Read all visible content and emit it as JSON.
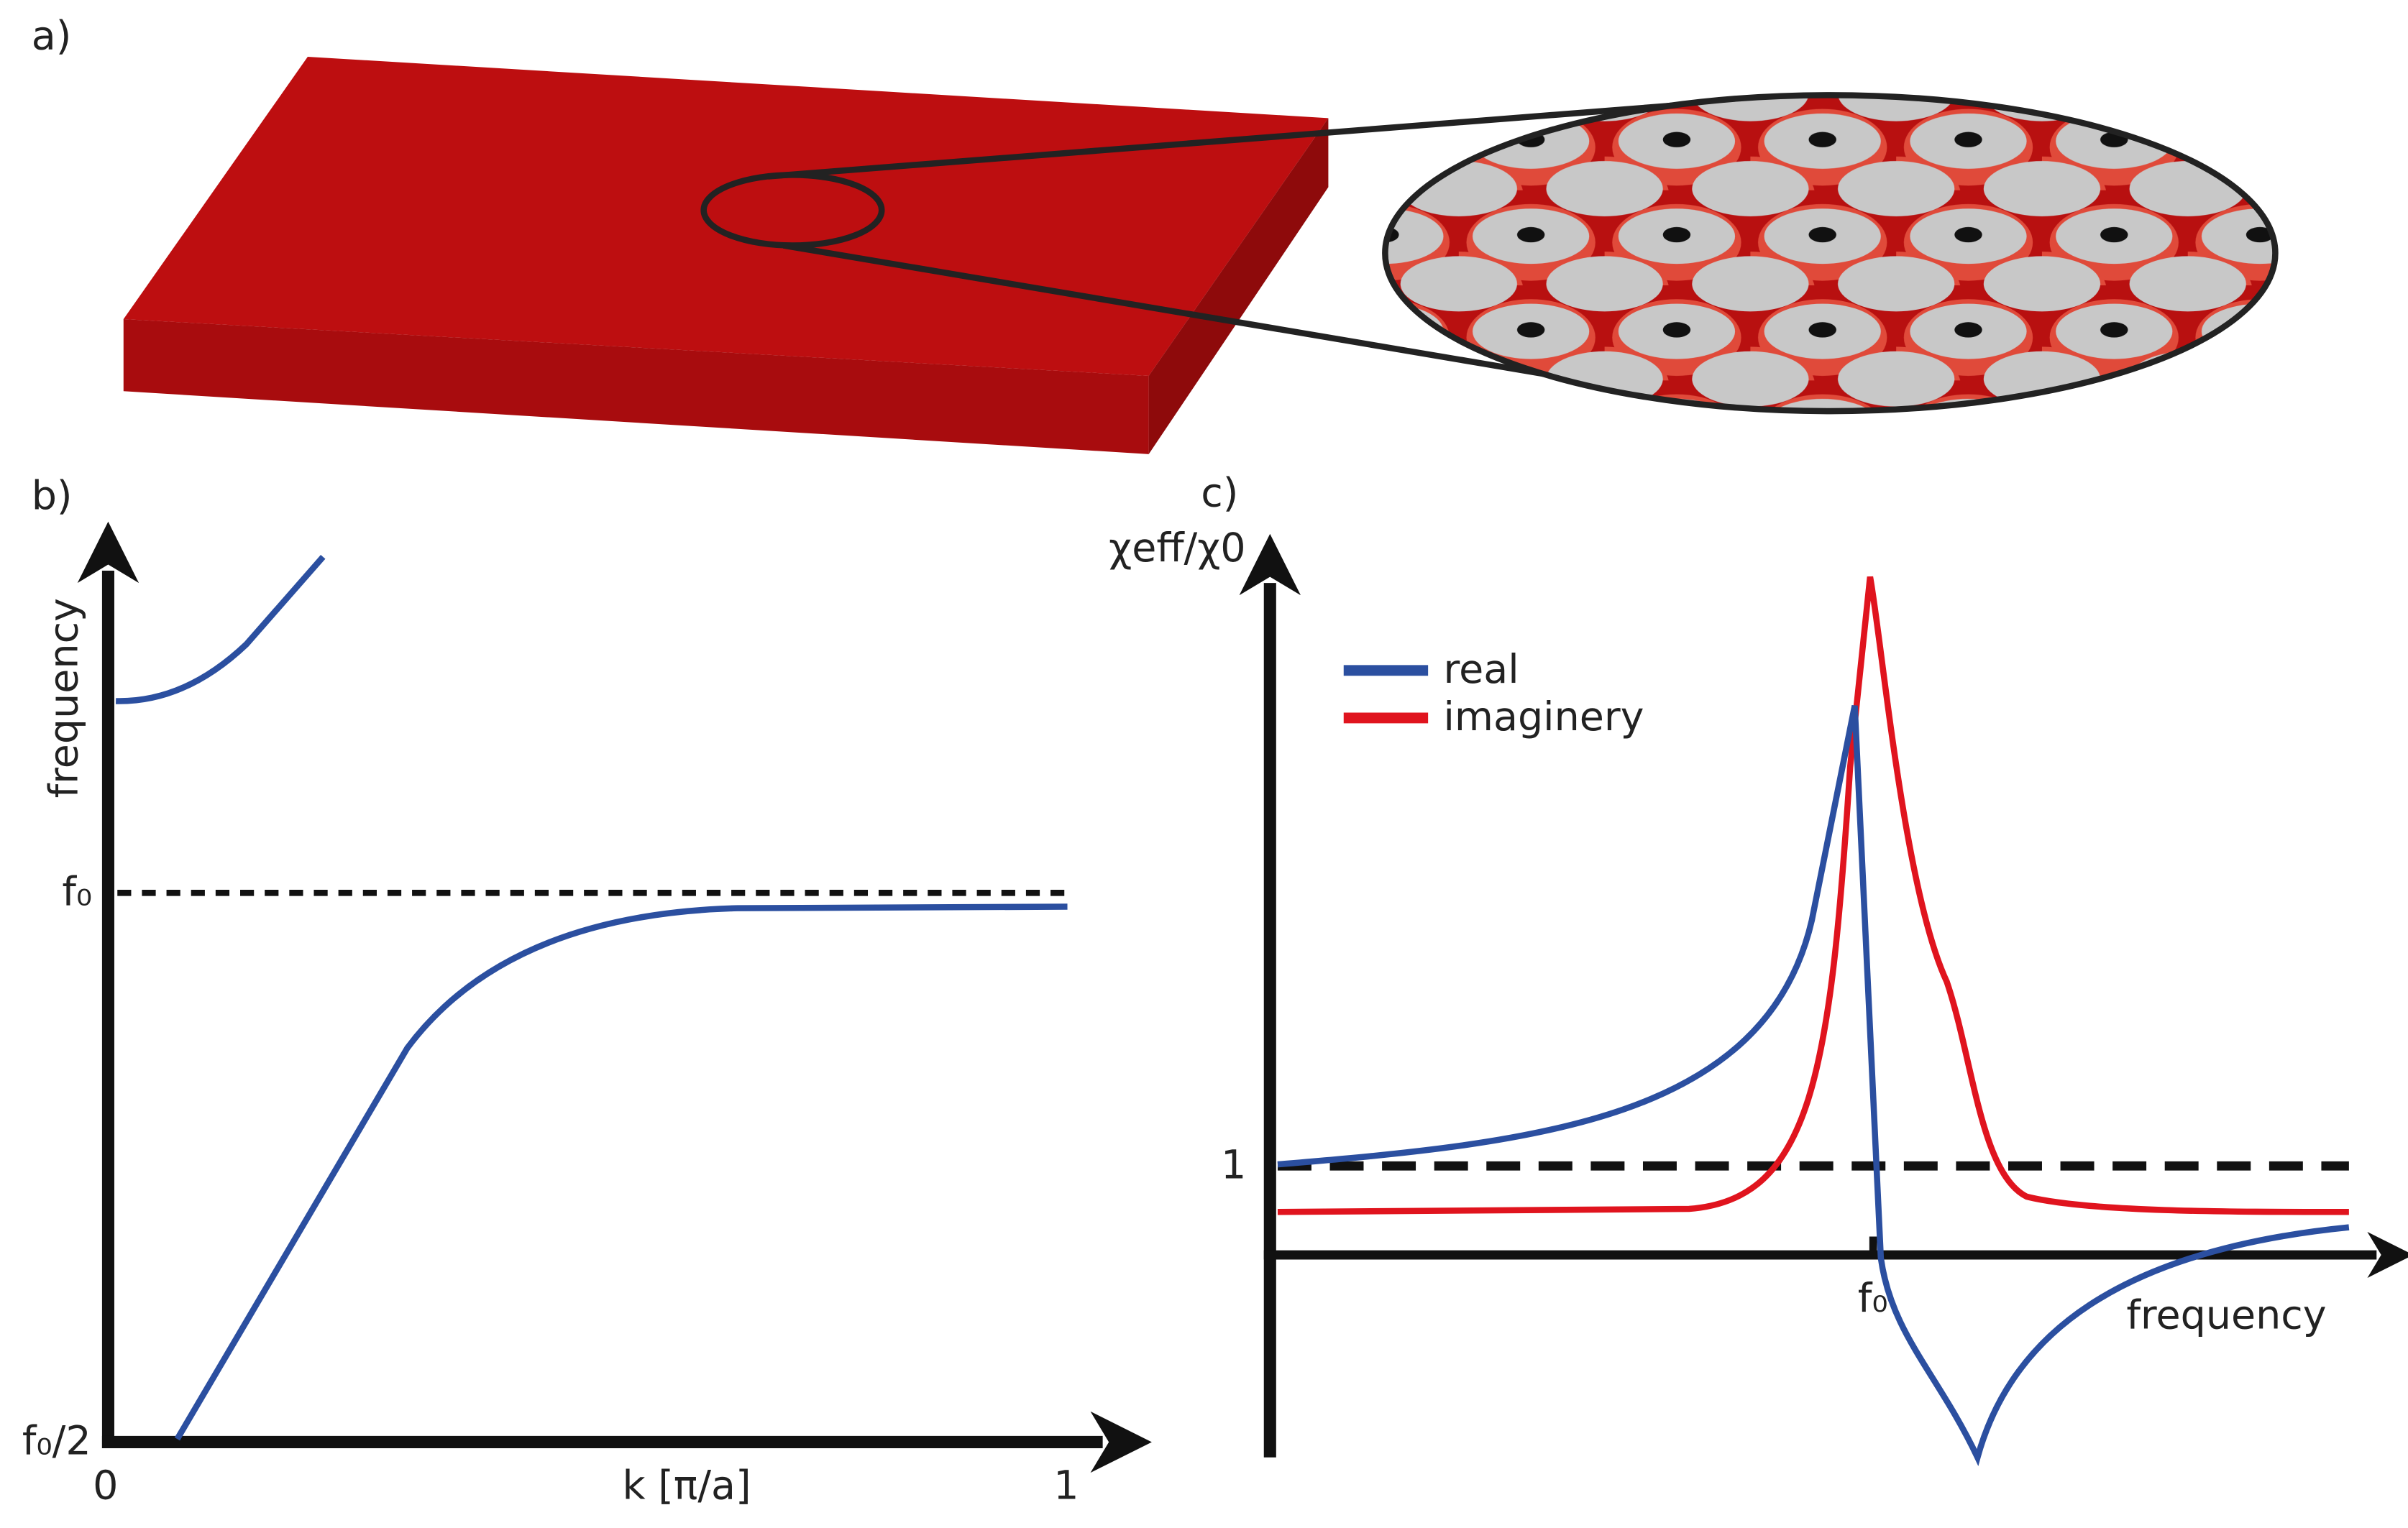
{
  "panels": {
    "a": {
      "label": "a)"
    },
    "b": {
      "label": "b)",
      "y_axis_label": "frequency",
      "x_axis_label": "k [π/a]",
      "y_ticks": [
        "f₀",
        "f₀/2"
      ],
      "x_ticks": [
        "0",
        "1"
      ]
    },
    "c": {
      "label": "c)",
      "y_axis_label": "χeff/χ0",
      "x_axis_label": "frequency",
      "y_ticks": [
        "1"
      ],
      "x_ticks": [
        "f₀"
      ],
      "legend": [
        {
          "name": "real",
          "color": "#2b4fa0"
        },
        {
          "name": "imaginery",
          "color": "#e0141e"
        }
      ]
    }
  }
}
